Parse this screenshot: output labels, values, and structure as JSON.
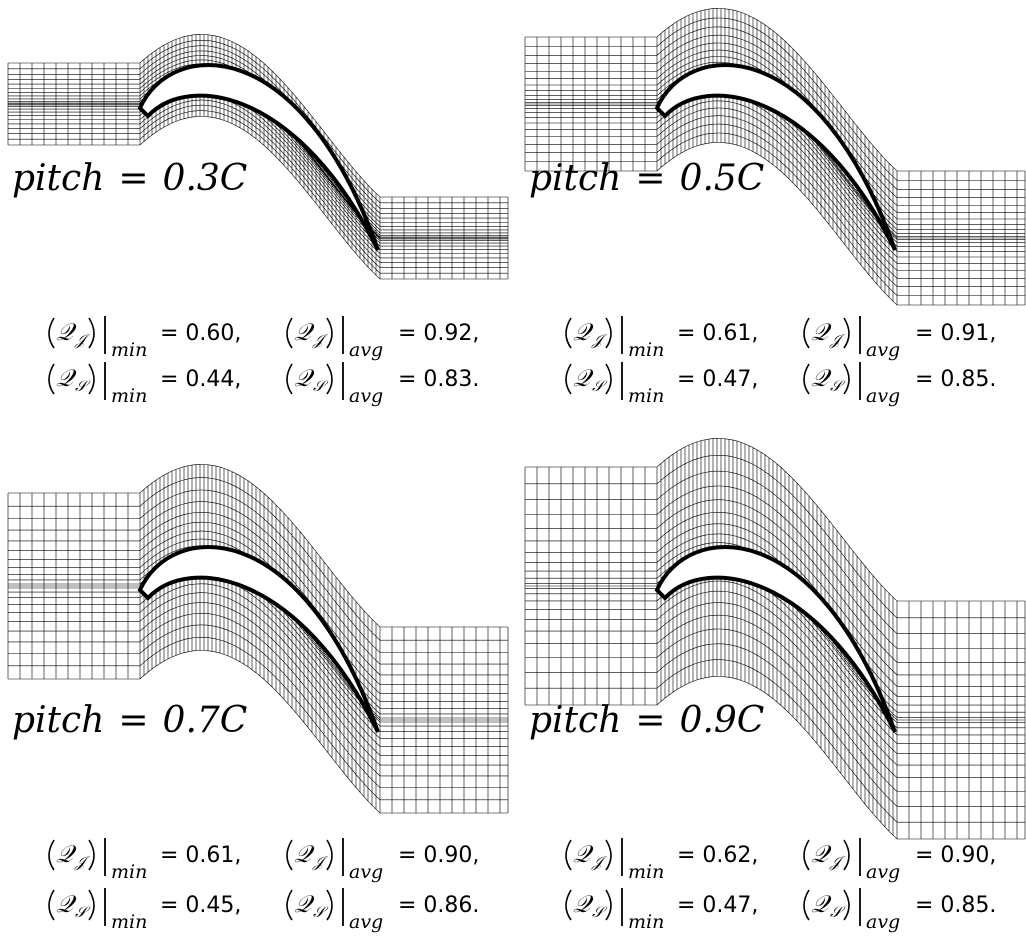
{
  "panels": [
    {
      "label": {
        "name": "pitch",
        "sign": "=",
        "value": "0.3C"
      },
      "metrics": [
        [
          {
            "symbol": "𝒬",
            "index": "𝒥",
            "stat": "min",
            "value": "= 0.60,"
          },
          {
            "symbol": "𝒬",
            "index": "𝒥",
            "stat": "avg",
            "value": "= 0.92,"
          }
        ],
        [
          {
            "symbol": "𝒬",
            "index": "𝒮",
            "stat": "min",
            "value": "= 0.44,"
          },
          {
            "symbol": "𝒬",
            "index": "𝒮",
            "stat": "avg",
            "value": "= 0.83."
          }
        ]
      ]
    },
    {
      "label": {
        "name": "pitch",
        "sign": "=",
        "value": "0.5C"
      },
      "metrics": [
        [
          {
            "symbol": "𝒬",
            "index": "𝒥",
            "stat": "min",
            "value": "= 0.61,"
          },
          {
            "symbol": "𝒬",
            "index": "𝒥",
            "stat": "avg",
            "value": "= 0.91,"
          }
        ],
        [
          {
            "symbol": "𝒬",
            "index": "𝒮",
            "stat": "min",
            "value": "= 0.47,"
          },
          {
            "symbol": "𝒬",
            "index": "𝒮",
            "stat": "avg",
            "value": "= 0.85."
          }
        ]
      ]
    },
    {
      "label": {
        "name": "pitch",
        "sign": "=",
        "value": "0.7C"
      },
      "metrics": [
        [
          {
            "symbol": "𝒬",
            "index": "𝒥",
            "stat": "min",
            "value": "= 0.61,"
          },
          {
            "symbol": "𝒬",
            "index": "𝒥",
            "stat": "avg",
            "value": "= 0.90,"
          }
        ],
        [
          {
            "symbol": "𝒬",
            "index": "𝒮",
            "stat": "min",
            "value": "= 0.45,"
          },
          {
            "symbol": "𝒬",
            "index": "𝒮",
            "stat": "avg",
            "value": "= 0.86."
          }
        ]
      ]
    },
    {
      "label": {
        "name": "pitch",
        "sign": "=",
        "value": "0.9C"
      },
      "metrics": [
        [
          {
            "symbol": "𝒬",
            "index": "𝒥",
            "stat": "min",
            "value": "= 0.62,"
          },
          {
            "symbol": "𝒬",
            "index": "𝒥",
            "stat": "avg",
            "value": "= 0.90,"
          }
        ],
        [
          {
            "symbol": "𝒬",
            "index": "𝒮",
            "stat": "min",
            "value": "= 0.47,"
          },
          {
            "symbol": "𝒬",
            "index": "𝒮",
            "stat": "avg",
            "value": "= 0.85."
          }
        ]
      ]
    }
  ]
}
